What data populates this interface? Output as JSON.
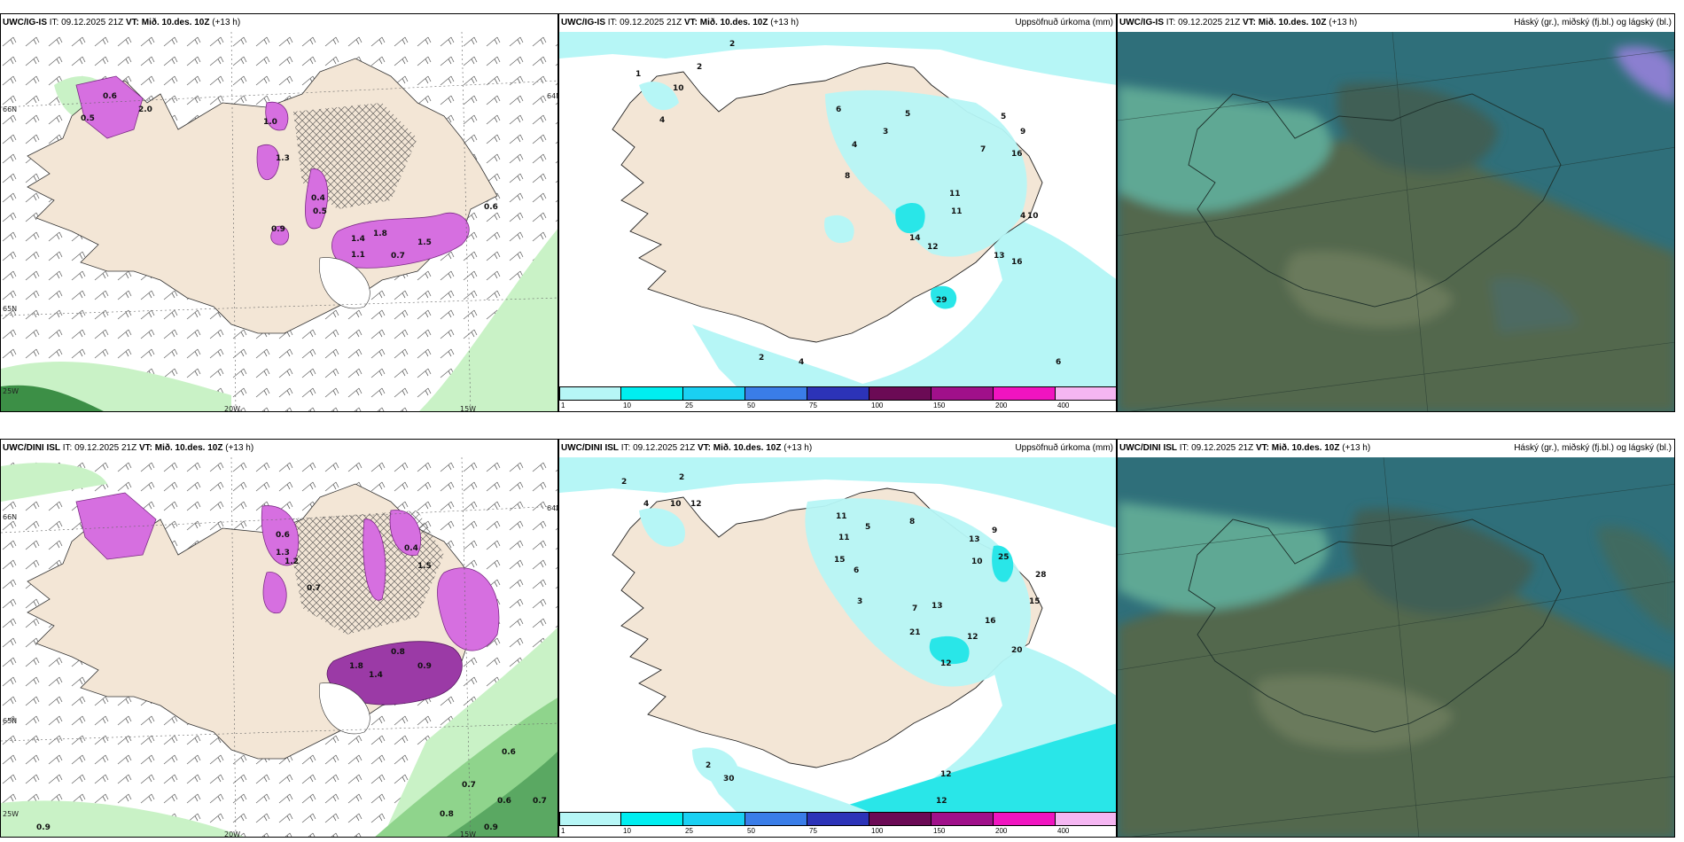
{
  "colors": {
    "land": "#f3e6d6",
    "sea": "#ffffff",
    "precip_light_green": "#c9f2c6",
    "precip_mid_green": "#8fd48c",
    "precip_dark_green": "#3c8f46",
    "snow_magenta": "#d66fe0",
    "snow_dark": "#9b3aa6",
    "accum_cyan_light": "#b6f6f6",
    "accum_cyan": "#29e6e8",
    "cloud_teal": "#2f6f7a",
    "cloud_olive": "#52674d",
    "cloud_light": "#5fa894"
  },
  "rows": [
    {
      "model": "UWC/IG-IS",
      "it_label": "IT:",
      "it_value": "09.12.2025 21Z",
      "vt_label": "VT:",
      "vt_value": "Mið. 10.des. 10Z",
      "lead": "(+13 h)",
      "panels": {
        "precip_rate": {
          "axis_labels": [
            "66N",
            "65N",
            "64N",
            "20W",
            "15W",
            "25W"
          ],
          "values": [
            "0.5",
            "0.6",
            "2.0",
            "0.4",
            "1.4",
            "1.1",
            "1.0",
            "0.9",
            "1.5",
            "1.3",
            "0.7",
            "0.5",
            "1.8",
            "0.6"
          ]
        },
        "accum": {
          "title_right": "Uppsöfnuð úrkoma (mm)",
          "values": [
            "1",
            "2",
            "2",
            "10",
            "4",
            "6",
            "4",
            "5",
            "3",
            "8",
            "7",
            "5",
            "9",
            "16",
            "10",
            "11",
            "14",
            "12",
            "13",
            "16",
            "4",
            "2",
            "6",
            "4",
            "29",
            "11"
          ]
        },
        "clouds": {
          "title_right": "Háský (gr.), miðský (fj.bl.) og lágský (bl.)"
        }
      }
    },
    {
      "model": "UWC/DINI ISL",
      "it_label": "IT:",
      "it_value": "09.12.2025 21Z",
      "vt_label": "VT:",
      "vt_value": "Mið. 10.des. 10Z",
      "lead": "(+13 h)",
      "panels": {
        "precip_rate": {
          "axis_labels": [
            "66N",
            "65N",
            "64N",
            "20W",
            "15W",
            "25W"
          ],
          "values": [
            "0.9",
            "0.8",
            "0.6",
            "1.2",
            "0.4",
            "1.5",
            "0.7",
            "1.3",
            "1.8",
            "1.4",
            "0.9",
            "0.6",
            "0.7",
            "0.8",
            "0.9",
            "0.6",
            "0.7"
          ]
        },
        "accum": {
          "title_right": "Uppsöfnuð úrkoma (mm)",
          "values": [
            "2",
            "4",
            "2",
            "10",
            "12",
            "11",
            "5",
            "8",
            "11",
            "15",
            "13",
            "6",
            "7",
            "3",
            "9",
            "10",
            "25",
            "28",
            "13",
            "15",
            "21",
            "12",
            "16",
            "20",
            "12",
            "2",
            "30",
            "12",
            "12"
          ]
        },
        "clouds": {
          "title_right": "Háský (gr.), miðský (fj.bl.) og lágský (bl.)"
        }
      }
    }
  ],
  "colorbar": {
    "ticks": [
      "1",
      "10",
      "25",
      "50",
      "75",
      "100",
      "150",
      "200",
      "400"
    ],
    "colors": [
      "#b6f6f6",
      "#00eef0",
      "#1ad0f2",
      "#3a7de8",
      "#2c33b8",
      "#6b0a55",
      "#a0108a",
      "#f014c0",
      "#f5b6f2"
    ]
  }
}
